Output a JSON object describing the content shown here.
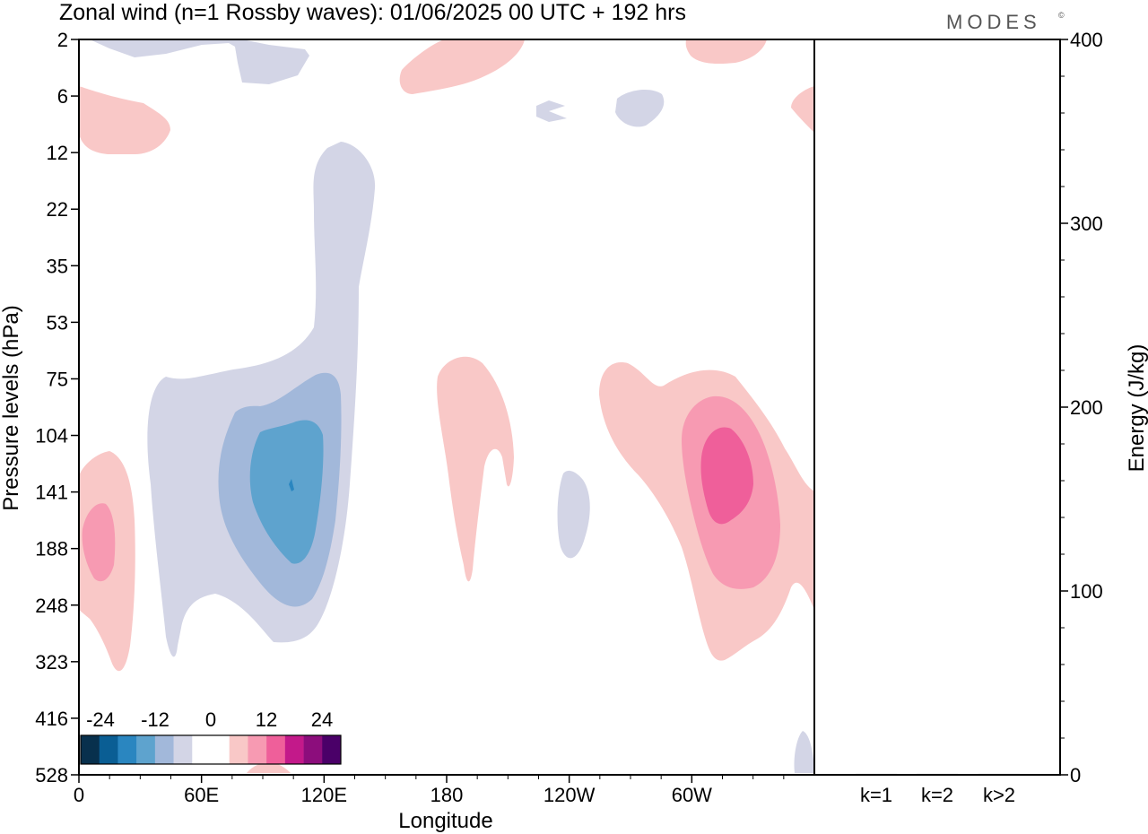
{
  "chart_data": {
    "type": "heatmap",
    "title": "Zonal wind (n=1 Rossby waves):  01/06/2025  00 UTC  + 192 hrs",
    "brand": "MODES",
    "brand_mark": "©",
    "xlabel": "Longitude",
    "ylabel": "Pressure levels (hPa)",
    "y2label": "Energy (J/kg)",
    "x_ticks": [
      "0",
      "60E",
      "120E",
      "180",
      "120W",
      "60W"
    ],
    "y_ticks": [
      "2",
      "6",
      "12",
      "22",
      "35",
      "53",
      "75",
      "104",
      "141",
      "188",
      "248",
      "323",
      "416",
      "528"
    ],
    "energy_axis": {
      "ticks": [
        "0",
        "100",
        "200",
        "300",
        "400"
      ],
      "range": [
        0,
        400
      ],
      "minor_step": 20
    },
    "energy_bars": {
      "categories": [
        "k=1",
        "k=2",
        "k>2"
      ],
      "values": [
        0.5,
        0.5,
        0.5
      ]
    },
    "colorbar": {
      "tick_labels": [
        "-24",
        "-12",
        "0",
        "12",
        "24"
      ],
      "colors": [
        "#08304d",
        "#0a5e94",
        "#2a86c0",
        "#5ea3ce",
        "#a2b8da",
        "#d3d5e6",
        "#ffffff",
        "#ffffff",
        "#f9c8c7",
        "#f79ab2",
        "#ef5f9a",
        "#c3198a",
        "#8c0d7c",
        "#4a0068"
      ]
    },
    "contour_levels": {
      "neg1": "#d3d5e6",
      "neg2": "#a2b8da",
      "neg3": "#5ea3ce",
      "neg4": "#2a86c0",
      "pos1": "#f9c8c7",
      "pos2": "#f79ab2",
      "pos3": "#ef5f9a"
    }
  }
}
